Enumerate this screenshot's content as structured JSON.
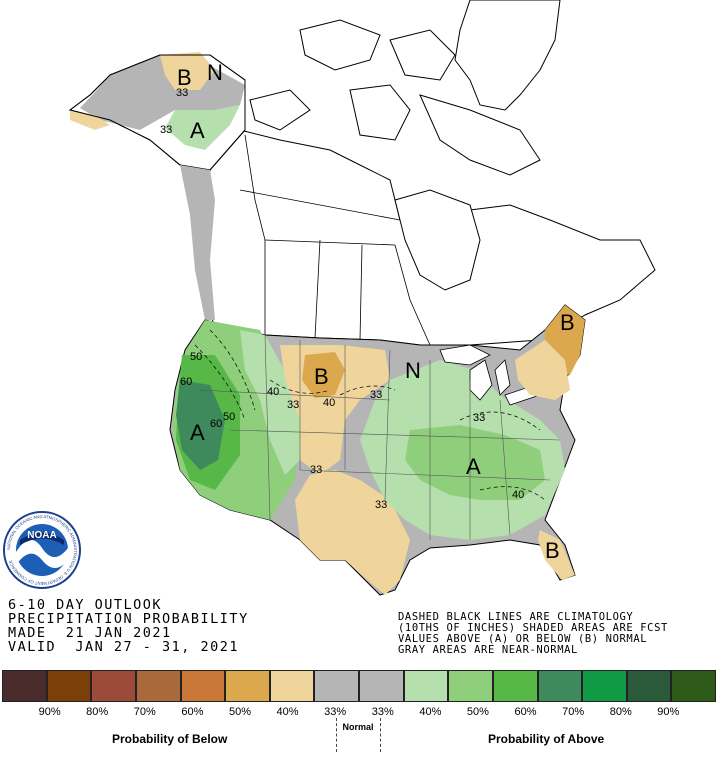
{
  "outlook": {
    "line1": "6-10 DAY OUTLOOK",
    "line2": "PRECIPITATION PROBABILITY",
    "line3": "MADE  21 JAN 2021",
    "line4": "VALID  JAN 27 - 31, 2021"
  },
  "note": {
    "line1": "DASHED BLACK LINES ARE CLIMATOLOGY",
    "line2": "(10THS OF INCHES) SHADED AREAS ARE FCST",
    "line3": "VALUES ABOVE (A) OR BELOW (B) NORMAL",
    "line4": "GRAY AREAS ARE NEAR-NORMAL"
  },
  "logo": {
    "text": "NOAA",
    "ring_text": "NATIONAL OCEANIC AND ATMOSPHERIC ADMINISTRATION  U.S. DEPARTMENT OF COMMERCE"
  },
  "map_labels": {
    "alaska_b": "B",
    "alaska_n": "N",
    "alaska_a": "A",
    "alaska_33": "33",
    "west_a": "A",
    "north_b": "B",
    "great_lakes_n": "N",
    "east_a": "A",
    "northeast_b": "B",
    "florida_b": "B",
    "c50a": "50",
    "c60a": "60",
    "c60b": "60",
    "c50b": "50",
    "c40a": "40",
    "c33a": "33",
    "c40b": "40",
    "c33b": "33",
    "c33c": "33",
    "c33d": "33",
    "c33e": "33",
    "c40c": "40"
  },
  "legend": {
    "colors": [
      "#4a2c2c",
      "#7b3f0a",
      "#9c4a3a",
      "#a86a3a",
      "#c97839",
      "#dba84e",
      "#efd59b",
      "#b5b5b5",
      "#b5b5b5",
      "#b6dfae",
      "#8fcf7c",
      "#57b847",
      "#3e8a5c",
      "#119a46",
      "#2a5a3a",
      "#2d5a18"
    ],
    "ticks": [
      "90%",
      "80%",
      "70%",
      "60%",
      "50%",
      "40%",
      "33%",
      "33%",
      "40%",
      "50%",
      "60%",
      "70%",
      "80%",
      "90%"
    ],
    "below_caption": "Probability of Below",
    "normal_caption": "Normal",
    "above_caption": "Probability of Above"
  }
}
